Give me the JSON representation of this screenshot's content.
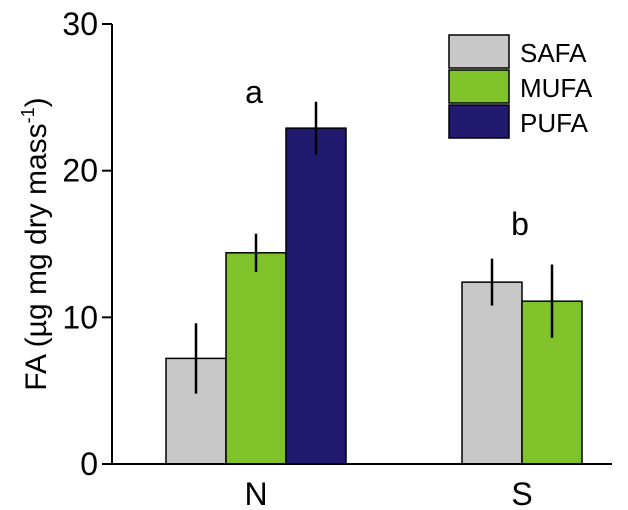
{
  "chart_data": {
    "type": "bar",
    "categories": [
      "N",
      "S"
    ],
    "ylabel": "FA (µg mg dry mass",
    "ylabel_sup": "-1",
    "ylabel_close": ")",
    "ylim": [
      0,
      30
    ],
    "yticks": [
      0,
      10,
      20,
      30
    ],
    "grid": false,
    "legend_position": "top-right",
    "series": [
      {
        "name": "SAFA",
        "color": "#c8c8c8",
        "values": [
          7.2,
          12.4
        ],
        "errors": [
          2.4,
          1.6
        ]
      },
      {
        "name": "MUFA",
        "color": "#80c22a",
        "values": [
          14.4,
          11.1
        ],
        "errors": [
          1.3,
          2.5
        ]
      },
      {
        "name": "PUFA",
        "color": "#221a6e",
        "values": [
          22.9,
          null
        ],
        "errors": [
          1.8,
          null
        ]
      }
    ],
    "annotations": [
      {
        "text": "a",
        "category": "N"
      },
      {
        "text": "b",
        "category": "S"
      }
    ]
  }
}
